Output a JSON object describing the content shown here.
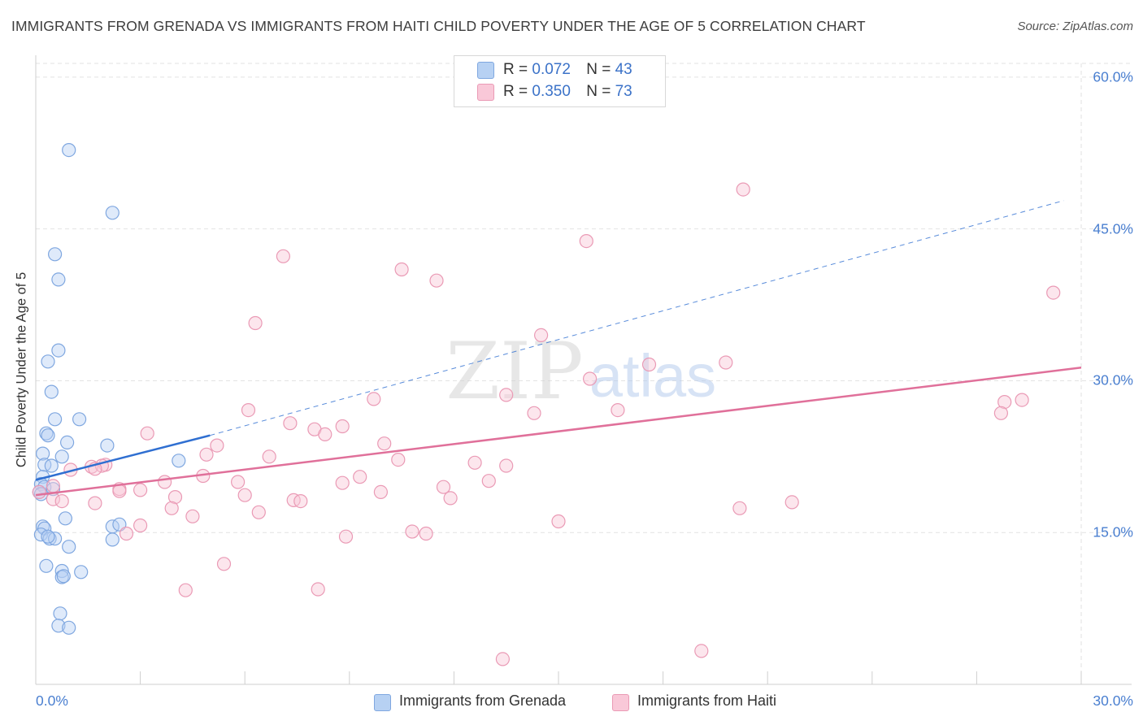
{
  "chart_data": {
    "type": "scatter",
    "title": "IMMIGRANTS FROM GRENADA VS IMMIGRANTS FROM HAITI CHILD POVERTY UNDER THE AGE OF 5 CORRELATION CHART",
    "source": "Source: ZipAtlas.com",
    "xlabel": "",
    "ylabel": "Child Poverty Under the Age of 5",
    "xlim": [
      0,
      30
    ],
    "ylim": [
      0,
      62
    ],
    "x_tick_labels": [
      "0.0%",
      "30.0%"
    ],
    "y_ticks": [
      15,
      30,
      45,
      60
    ],
    "y_tick_labels": [
      "15.0%",
      "30.0%",
      "45.0%",
      "60.0%"
    ],
    "watermark": {
      "zip": "ZIP",
      "atlas": "atlas"
    },
    "legend": [
      {
        "swatch": "blue",
        "r_label": "R =",
        "r_value": "0.072",
        "n_label": "N =",
        "n_value": "43"
      },
      {
        "swatch": "pink",
        "r_label": "R =",
        "r_value": "0.350",
        "n_label": "N =",
        "n_value": "73"
      }
    ],
    "series": [
      {
        "name": "Immigrants from Grenada",
        "color": "#7fa7e0",
        "fill": "#b7d1f3",
        "trend_color": "#2f6fd1",
        "trend": {
          "x0": 0.0,
          "y0": 20.2,
          "x1": 5.0,
          "y1": 24.6,
          "dashed_to_x": 29.5,
          "dashed_to_y": 47.8
        },
        "points": [
          [
            0.95,
            52.8
          ],
          [
            2.2,
            46.6
          ],
          [
            0.55,
            42.5
          ],
          [
            0.65,
            40.0
          ],
          [
            0.65,
            33.0
          ],
          [
            0.35,
            31.9
          ],
          [
            0.45,
            28.9
          ],
          [
            0.55,
            26.2
          ],
          [
            1.25,
            26.2
          ],
          [
            0.3,
            24.8
          ],
          [
            0.35,
            24.6
          ],
          [
            0.9,
            23.9
          ],
          [
            2.05,
            23.6
          ],
          [
            0.2,
            22.8
          ],
          [
            0.75,
            22.5
          ],
          [
            4.1,
            22.1
          ],
          [
            0.25,
            21.7
          ],
          [
            0.45,
            21.6
          ],
          [
            0.2,
            20.5
          ],
          [
            0.15,
            19.8
          ],
          [
            0.25,
            19.5
          ],
          [
            0.5,
            19.3
          ],
          [
            0.1,
            19.0
          ],
          [
            0.15,
            18.8
          ],
          [
            0.85,
            16.4
          ],
          [
            0.2,
            15.6
          ],
          [
            2.2,
            15.6
          ],
          [
            2.4,
            15.8
          ],
          [
            0.25,
            15.4
          ],
          [
            0.15,
            14.8
          ],
          [
            0.4,
            14.4
          ],
          [
            0.55,
            14.4
          ],
          [
            2.2,
            14.3
          ],
          [
            0.95,
            13.6
          ],
          [
            0.3,
            11.7
          ],
          [
            0.75,
            11.2
          ],
          [
            1.3,
            11.1
          ],
          [
            0.75,
            10.6
          ],
          [
            0.8,
            10.7
          ],
          [
            0.7,
            7.0
          ],
          [
            0.65,
            5.8
          ],
          [
            0.95,
            5.6
          ],
          [
            0.35,
            14.6
          ]
        ]
      },
      {
        "name": "Immigrants from Haiti",
        "color": "#ea9ab5",
        "fill": "#f9c8d8",
        "trend_color": "#e0709a",
        "trend": {
          "x0": 0.0,
          "y0": 18.7,
          "x1": 30.0,
          "y1": 31.3
        },
        "points": [
          [
            20.3,
            48.9
          ],
          [
            15.8,
            43.8
          ],
          [
            7.1,
            42.3
          ],
          [
            10.5,
            41.0
          ],
          [
            11.5,
            39.9
          ],
          [
            29.2,
            38.7
          ],
          [
            6.3,
            35.7
          ],
          [
            14.5,
            34.5
          ],
          [
            19.8,
            31.8
          ],
          [
            17.6,
            31.6
          ],
          [
            15.9,
            30.2
          ],
          [
            13.5,
            28.6
          ],
          [
            9.7,
            28.2
          ],
          [
            28.3,
            28.1
          ],
          [
            27.8,
            27.9
          ],
          [
            6.1,
            27.1
          ],
          [
            14.3,
            26.8
          ],
          [
            16.7,
            27.1
          ],
          [
            27.7,
            26.8
          ],
          [
            7.3,
            25.8
          ],
          [
            8.0,
            25.2
          ],
          [
            8.8,
            25.5
          ],
          [
            8.3,
            24.7
          ],
          [
            3.2,
            24.8
          ],
          [
            10.0,
            23.8
          ],
          [
            5.2,
            23.6
          ],
          [
            4.9,
            22.7
          ],
          [
            6.7,
            22.5
          ],
          [
            10.4,
            22.2
          ],
          [
            12.6,
            21.9
          ],
          [
            13.5,
            21.6
          ],
          [
            1.6,
            21.5
          ],
          [
            2.0,
            21.7
          ],
          [
            1.9,
            21.6
          ],
          [
            1.7,
            21.3
          ],
          [
            1.0,
            21.2
          ],
          [
            9.3,
            20.5
          ],
          [
            4.8,
            20.6
          ],
          [
            3.7,
            20.0
          ],
          [
            5.8,
            20.0
          ],
          [
            8.8,
            19.9
          ],
          [
            13.0,
            20.1
          ],
          [
            11.7,
            19.5
          ],
          [
            2.4,
            19.3
          ],
          [
            2.4,
            19.1
          ],
          [
            3.0,
            19.2
          ],
          [
            9.9,
            19.0
          ],
          [
            6.0,
            18.7
          ],
          [
            4.0,
            18.5
          ],
          [
            11.9,
            18.4
          ],
          [
            0.5,
            18.3
          ],
          [
            0.75,
            18.1
          ],
          [
            7.4,
            18.2
          ],
          [
            7.6,
            18.1
          ],
          [
            1.7,
            17.9
          ],
          [
            21.7,
            18.0
          ],
          [
            3.9,
            17.4
          ],
          [
            20.2,
            17.4
          ],
          [
            6.4,
            17.0
          ],
          [
            4.5,
            16.6
          ],
          [
            15.0,
            16.1
          ],
          [
            3.0,
            15.7
          ],
          [
            10.8,
            15.1
          ],
          [
            11.2,
            14.9
          ],
          [
            2.6,
            14.9
          ],
          [
            8.9,
            14.6
          ],
          [
            5.4,
            11.9
          ],
          [
            4.3,
            9.3
          ],
          [
            8.1,
            9.4
          ],
          [
            19.1,
            3.3
          ],
          [
            13.4,
            2.5
          ],
          [
            0.1,
            19.0
          ],
          [
            0.5,
            19.6
          ]
        ]
      }
    ]
  },
  "bottom_legend": [
    {
      "swatch": "blue",
      "label": "Immigrants from Grenada"
    },
    {
      "swatch": "pink",
      "label": "Immigrants from Haiti"
    }
  ]
}
